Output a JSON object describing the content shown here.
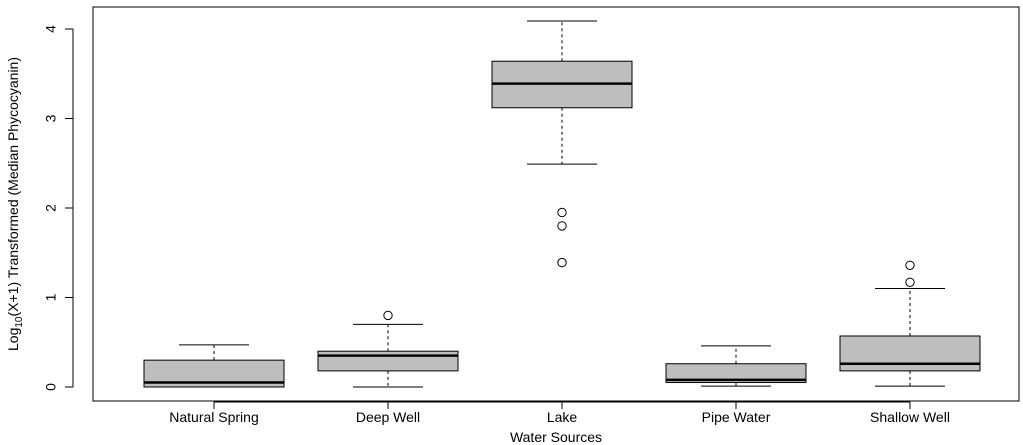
{
  "chart_data": {
    "type": "boxplot",
    "title": "",
    "xlabel": "Water Sources",
    "ylabel": "Log10(X+1) Transformed (Median Phycocyanin)",
    "ylabel_parts": {
      "pre": "Log",
      "sub": "10",
      "post": "(X+1) Transformed (Median Phycocyanin)"
    },
    "ylim": [
      -0.15,
      4.25
    ],
    "yticks": [
      0,
      1,
      2,
      3,
      4
    ],
    "grid": false,
    "box_color": "#bebebe",
    "categories": [
      "Natural Spring",
      "Deep Well",
      "Lake",
      "Pipe Water",
      "Shallow Well"
    ],
    "boxes": [
      {
        "name": "Natural Spring",
        "whisker_low": 0.0,
        "q1": 0.0,
        "median": 0.05,
        "q3": 0.3,
        "whisker_high": 0.47,
        "outliers": []
      },
      {
        "name": "Deep Well",
        "whisker_low": 0.0,
        "q1": 0.18,
        "median": 0.35,
        "q3": 0.4,
        "whisker_high": 0.7,
        "outliers": [
          0.8
        ]
      },
      {
        "name": "Lake",
        "whisker_low": 2.49,
        "q1": 3.12,
        "median": 3.39,
        "q3": 3.64,
        "whisker_high": 4.09,
        "outliers": [
          1.39,
          1.8,
          1.95
        ]
      },
      {
        "name": "Pipe Water",
        "whisker_low": 0.01,
        "q1": 0.05,
        "median": 0.08,
        "q3": 0.26,
        "whisker_high": 0.46,
        "outliers": []
      },
      {
        "name": "Shallow Well",
        "whisker_low": 0.01,
        "q1": 0.18,
        "median": 0.26,
        "q3": 0.57,
        "whisker_high": 1.1,
        "outliers": [
          1.17,
          1.36
        ]
      }
    ]
  }
}
